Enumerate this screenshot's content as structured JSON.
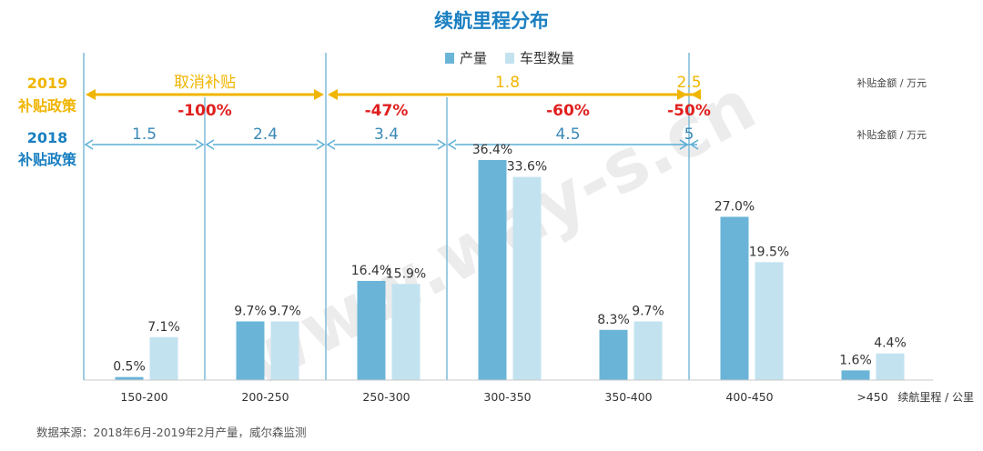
{
  "chart_data": {
    "type": "bar",
    "title": "续航里程分布",
    "xlabel": "续航里程 / 公里",
    "ylabel": "",
    "ylim": [
      0,
      40
    ],
    "categories": [
      "150-200",
      "200-250",
      "250-300",
      "300-350",
      "350-400",
      "400-450",
      ">450"
    ],
    "series": [
      {
        "name": "产量",
        "values": [
          0.5,
          9.7,
          16.4,
          36.4,
          8.3,
          27.0,
          1.6
        ],
        "labels": [
          "0.5%",
          "9.7%",
          "16.4%",
          "36.4%",
          "8.3%",
          "27.0%",
          "1.6%"
        ],
        "color": "#6ab4d8"
      },
      {
        "name": "车型数量",
        "values": [
          7.1,
          9.7,
          15.9,
          33.6,
          9.7,
          19.5,
          4.4
        ],
        "labels": [
          "7.1%",
          "9.7%",
          "15.9%",
          "33.6%",
          "9.7%",
          "19.5%",
          "4.4%"
        ],
        "color": "#c3e2f0"
      }
    ],
    "legend_position": "top-center",
    "grid": false
  },
  "policy_2019": {
    "year": "2019",
    "label": "补贴政策",
    "unit": "补贴金额 / 万元",
    "color": "#f0b500",
    "segments": [
      {
        "from": 150,
        "to": 250,
        "amount": "取消补贴"
      },
      {
        "from": 250,
        "to": 400,
        "amount": "1.8"
      },
      {
        "from": 400,
        "to": 450,
        "amount": "2.5"
      }
    ],
    "changes": [
      {
        "from": 150,
        "to": 250,
        "text": "-100%"
      },
      {
        "from": 250,
        "to": 300,
        "text": "-47%"
      },
      {
        "from": 300,
        "to": 400,
        "text": "-60%"
      },
      {
        "from": 400,
        "to": 450,
        "text": "-50%"
      }
    ]
  },
  "policy_2018": {
    "year": "2018",
    "label": "补贴政策",
    "unit": "补贴金额 / 万元",
    "color": "#5aaed6",
    "segments": [
      {
        "from": 150,
        "to": 200,
        "amount": "1.5"
      },
      {
        "from": 200,
        "to": 250,
        "amount": "2.4"
      },
      {
        "from": 250,
        "to": 300,
        "amount": "3.4"
      },
      {
        "from": 300,
        "to": 400,
        "amount": "4.5"
      },
      {
        "from": 400,
        "to": 450,
        "amount": "5"
      }
    ]
  },
  "source": "数据来源：2018年6月-2019年2月产量，威尔森监测",
  "watermark": "www.way-s.cn"
}
